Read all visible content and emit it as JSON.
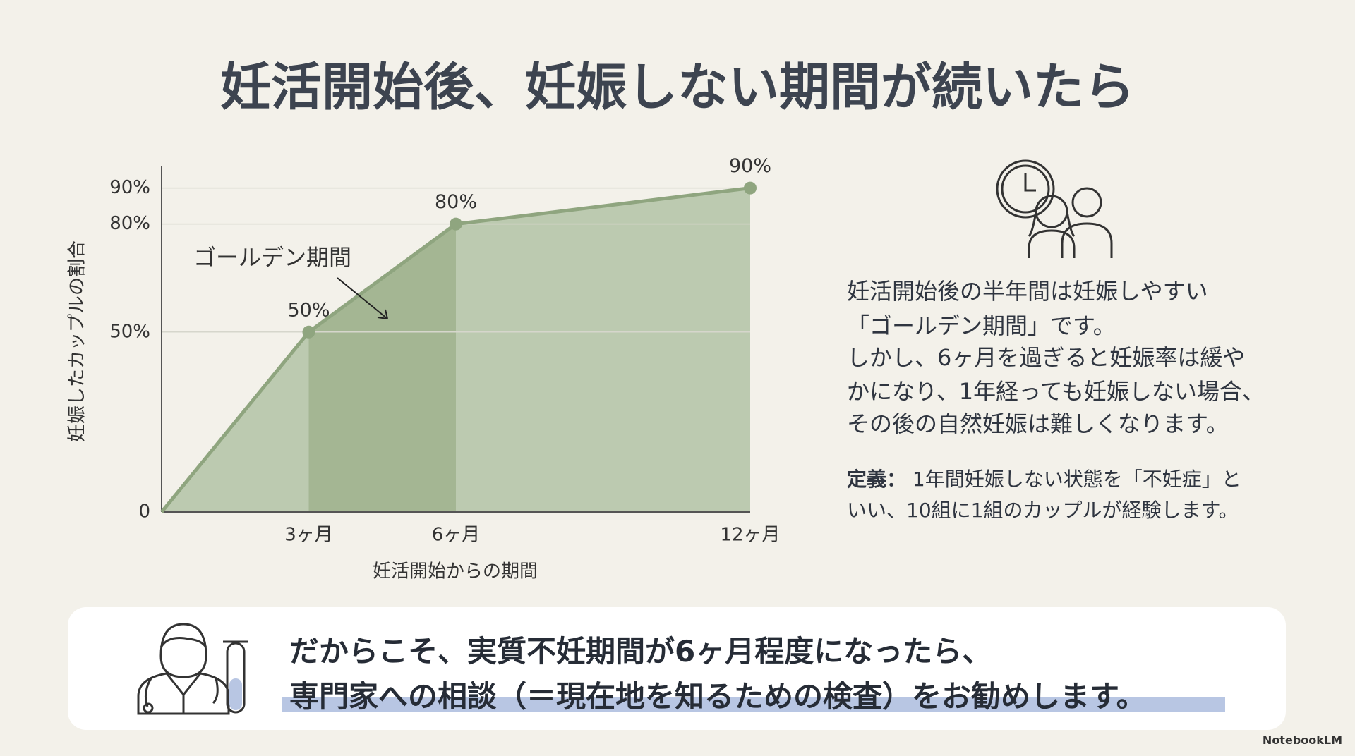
{
  "title": "妊活開始後、妊娠しない期間が続いたら",
  "chart_data": {
    "type": "area",
    "x": [
      0,
      3,
      6,
      12
    ],
    "values": [
      0,
      50,
      80,
      90
    ],
    "value_labels": [
      null,
      "50%",
      "80%",
      "90%"
    ],
    "xlim": [
      0,
      12
    ],
    "xticks": [
      {
        "value": 3,
        "label": "3ヶ月"
      },
      {
        "value": 6,
        "label": "6ヶ月"
      },
      {
        "value": 12,
        "label": "12ヶ月"
      }
    ],
    "ylim": [
      0,
      96
    ],
    "yticks": [
      0,
      {
        "value": 50,
        "label": "50%"
      },
      {
        "value": 80,
        "label": "80%"
      },
      {
        "value": 90,
        "label": "90%"
      }
    ],
    "xlabel": "妊活開始からの期間",
    "ylabel": "妊娠したカップルの割合",
    "annotation": "ゴールデン期間",
    "shade_between": [
      3,
      6
    ],
    "color": "#bccab0",
    "line_color": "#8fa57f",
    "shade_color": "#a4b693",
    "grid": true
  },
  "description": [
    "妊活開始後の半年間は妊娠しやすい",
    "「ゴールデン期間」です。",
    "しかし、6ヶ月を過ぎると妊娠率は緩や",
    "かになり、1年経っても妊娠しない場合、",
    "その後の自然妊娠は難しくなります。"
  ],
  "definition": {
    "label": "定義：",
    "lines": [
      "1年間妊娠しない状態を「不妊症」と",
      "いい、10組に1組のカップルが経験します。"
    ]
  },
  "callout": [
    "だからこそ、実質不妊期間が6ヶ月程度になったら、",
    "専門家への相談（＝現在地を知るための検査）をお勧めします。"
  ],
  "footer": "NotebookLM"
}
